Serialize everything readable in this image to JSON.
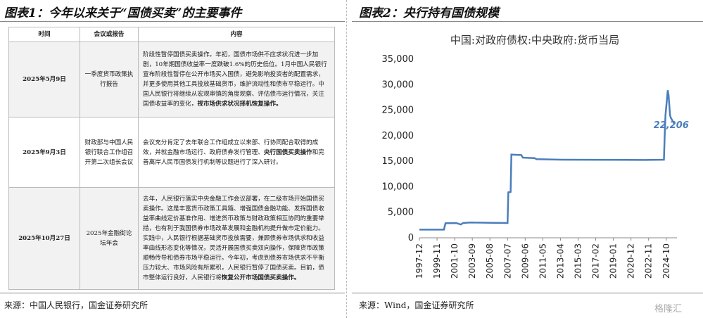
{
  "left": {
    "title": "图表1：今年以来关于“国债买卖”的主要事件",
    "table": {
      "header": [
        "时间",
        "会议或报告",
        "内容"
      ],
      "rows": [
        {
          "date": "2025年5月9日",
          "event": "一季度货币政策执行报告",
          "content": [
            {
              "text": "阶段性暂停国债买卖操作。年初，国债市场供不应求状况进一步加剧，10年期国债收益率一度跌破1.6%的历史低位。1月中国人民银行宣布阶段性暂停在公开市场买入国债，避免影响投资者的配置需求，并更多使用其他工具投放基础货币，维护流动性和债市平稳运行。中国人民银行将继续从宏观审慎的角度观察、评估债市运行情况，关注国债收益率的变化，",
              "bold": false
            },
            {
              "text": "视市场供求状况择机恢复操作。",
              "bold": true
            }
          ]
        },
        {
          "date": "2025年9月3日",
          "event": "财政部与中国人民银行联合工作组召开第二次组长会议",
          "content": [
            {
              "text": "会议充分肯定了去年联合工作组成立以来部、行协同配合取得的成效，并就金融市场运行、政府债券发行管理、",
              "bold": false
            },
            {
              "text": "央行国债买卖操作",
              "bold": true
            },
            {
              "text": "和完善离岸人民币国债发行机制等议题进行了深入研讨。",
              "bold": false
            }
          ]
        },
        {
          "date": "2025年10月27日",
          "event": "2025年金融街论坛年会",
          "content": [
            {
              "text": "去年，人民银行落实中央金融工作会议部署，在二级市场开始国债买卖操作。这是丰富货币政策工具箱、增强国债金融功能、发挥国债收益率曲线定价基准作用、增进货币政策与财政政策相互协同的重要举措，也有利于我国债券市场改革发展和金融机构提升做市定价能力。实践中，人民银行根据基础货币投放需要，兼顾债券市场供求和收益率曲线形态变化等情况，灵活开展国债买卖双向操作，保障货币政策顺畅传导和债券市场平稳运行。今年初，考虑到债券市场供求不平衡压力较大、市场风险有所累积，人民银行暂停了国债买卖。目前，债市整体运行良好，人民银行将",
              "bold": false
            },
            {
              "text": "恢复公开市场国债买卖操作。",
              "bold": true
            }
          ]
        }
      ]
    },
    "source": "来源：中国人民银行，国金证券研究所"
  },
  "chart_data": {
    "type": "line",
    "panel_title": "图表2：央行持有国债规模",
    "title": "中国:对政府债权:中央政府:货币当局",
    "x": [
      "1997-12",
      "2000-08",
      "2000-10",
      "2001-12",
      "2002-06",
      "2002-09",
      "2003-06",
      "2005-06",
      "2007-07",
      "2007-08",
      "2007-11",
      "2007-12",
      "2009-01",
      "2009-03",
      "2010-06",
      "2010-09",
      "2013-06",
      "2022-06",
      "2024-07",
      "2024-08",
      "2024-09",
      "2024-12",
      "2025-01",
      "2025-02",
      "2025-03",
      "2025-04",
      "2025-09"
    ],
    "series": [
      {
        "name": "中国:对政府债权:中央政府:货币当局",
        "color": "#4a7ebb",
        "values": [
          1600,
          1600,
          2850,
          2900,
          2600,
          2900,
          3000,
          2950,
          2900,
          8900,
          9000,
          16300,
          16200,
          15700,
          15600,
          15400,
          15300,
          15250,
          15300,
          20000,
          24000,
          28900,
          28000,
          26000,
          24000,
          23500,
          22206
        ]
      }
    ],
    "annotation": {
      "value": 22206,
      "label": "22,206"
    },
    "xlim": [
      "1997-12",
      "2025-12"
    ],
    "xticks": [
      "1997-12",
      "1999-11",
      "2001-10",
      "2003-09",
      "2005-08",
      "2007-07",
      "2009-06",
      "2011-05",
      "2013-04",
      "2015-03",
      "2017-02",
      "2019-01",
      "2020-12",
      "2022-11",
      "2024-10"
    ],
    "ylim": [
      0,
      35000
    ],
    "yticks": [
      {
        "value": 0,
        "label": "0"
      },
      {
        "value": 5000,
        "label": "5,000"
      },
      {
        "value": 10000,
        "label": "10,000"
      },
      {
        "value": 15000,
        "label": "15,000"
      },
      {
        "value": 20000,
        "label": "20,000"
      },
      {
        "value": 25000,
        "label": "25,000"
      },
      {
        "value": 30000,
        "label": "30,000"
      },
      {
        "value": 35000,
        "label": "35,000"
      }
    ],
    "grid": false,
    "source": "来源：Wind，国金证券研究所",
    "watermark": "格隆汇"
  }
}
